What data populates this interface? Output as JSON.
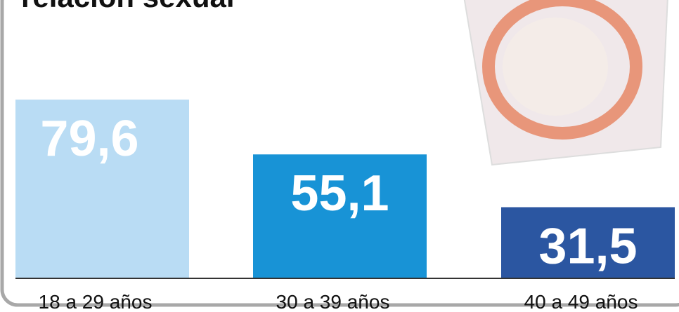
{
  "chart_data": {
    "type": "bar",
    "title": "relación sexual",
    "categories": [
      "18 a 29 años",
      "30 a 39 años",
      "40 a 49 años"
    ],
    "values": [
      79.6,
      55.1,
      31.5
    ],
    "value_labels": [
      "79,6",
      "55,1",
      "31,5"
    ],
    "colors": [
      "#b9dcf4",
      "#1893d6",
      "#2b56a1"
    ]
  }
}
